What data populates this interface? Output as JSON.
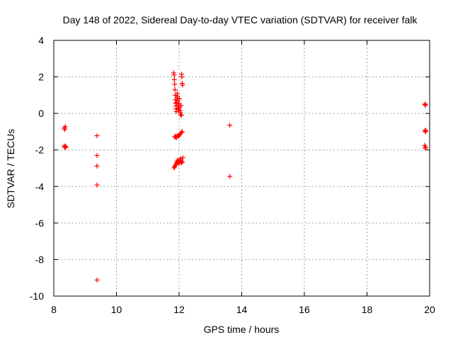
{
  "chart_data": {
    "type": "scatter",
    "title": "Day 148 of 2022, Sidereal Day-to-day VTEC variation (SDTVAR) for receiver falk",
    "xlabel": "GPS time / hours",
    "ylabel": "SDTVAR / TECUs",
    "xlim": [
      8,
      20
    ],
    "ylim": [
      -10,
      4
    ],
    "x_ticks": [
      8,
      10,
      12,
      14,
      16,
      18,
      20
    ],
    "y_ticks": [
      4,
      2,
      0,
      -2,
      -4,
      -6,
      -8,
      -10
    ],
    "x_tick_labels": [
      "8",
      "10",
      "12",
      "14",
      "16",
      "18",
      "20"
    ],
    "y_tick_labels": [
      "4",
      "2",
      "0",
      "-2",
      "-4",
      "-6",
      "-8",
      "-10"
    ],
    "grid": true,
    "marker": "plus",
    "color": "#ff0000",
    "series": [
      {
        "name": "SDTVAR",
        "points": [
          [
            8.33,
            -0.8
          ],
          [
            8.35,
            -0.88
          ],
          [
            8.37,
            -0.72
          ],
          [
            8.33,
            -1.78
          ],
          [
            8.35,
            -1.86
          ],
          [
            8.37,
            -1.8
          ],
          [
            8.39,
            -1.84
          ],
          [
            9.38,
            -1.22
          ],
          [
            9.38,
            -2.3
          ],
          [
            9.38,
            -2.88
          ],
          [
            9.38,
            -3.92
          ],
          [
            9.38,
            -9.12
          ],
          [
            11.83,
            2.22
          ],
          [
            11.84,
            2.1
          ],
          [
            11.85,
            1.85
          ],
          [
            11.86,
            1.6
          ],
          [
            11.87,
            1.3
          ],
          [
            11.88,
            1.0
          ],
          [
            11.88,
            0.75
          ],
          [
            11.89,
            0.55
          ],
          [
            11.9,
            0.4
          ],
          [
            11.9,
            0.25
          ],
          [
            11.91,
            0.1
          ],
          [
            11.92,
            0.6
          ],
          [
            11.93,
            0.85
          ],
          [
            11.94,
            1.1
          ],
          [
            11.95,
            0.95
          ],
          [
            11.96,
            0.7
          ],
          [
            11.97,
            0.45
          ],
          [
            11.98,
            0.3
          ],
          [
            11.99,
            0.2
          ],
          [
            12.0,
            0.55
          ],
          [
            12.01,
            0.8
          ],
          [
            12.02,
            0.35
          ],
          [
            12.03,
            0.15
          ],
          [
            12.04,
            0.05
          ],
          [
            12.05,
            -0.05
          ],
          [
            12.06,
            0.45
          ],
          [
            12.07,
            -0.12
          ],
          [
            12.08,
            2.15
          ],
          [
            12.09,
            2.0
          ],
          [
            12.1,
            1.65
          ],
          [
            12.11,
            1.55
          ],
          [
            11.86,
            -1.28
          ],
          [
            11.88,
            -1.3
          ],
          [
            11.9,
            -1.24
          ],
          [
            11.92,
            -1.32
          ],
          [
            11.95,
            -1.22
          ],
          [
            11.98,
            -1.26
          ],
          [
            12.01,
            -1.18
          ],
          [
            12.04,
            -1.12
          ],
          [
            12.07,
            -1.04
          ],
          [
            12.1,
            -1.0
          ],
          [
            11.84,
            -2.98
          ],
          [
            11.86,
            -2.92
          ],
          [
            11.88,
            -2.85
          ],
          [
            11.9,
            -2.78
          ],
          [
            11.92,
            -2.7
          ],
          [
            11.94,
            -2.62
          ],
          [
            11.96,
            -2.55
          ],
          [
            11.98,
            -2.68
          ],
          [
            12.0,
            -2.75
          ],
          [
            12.02,
            -2.6
          ],
          [
            12.04,
            -2.48
          ],
          [
            12.06,
            -2.58
          ],
          [
            12.08,
            -2.7
          ],
          [
            12.1,
            -2.65
          ],
          [
            12.12,
            -2.42
          ],
          [
            13.62,
            -0.65
          ],
          [
            13.62,
            -3.45
          ],
          [
            19.85,
            0.48
          ],
          [
            19.86,
            0.52
          ],
          [
            19.87,
            0.45
          ],
          [
            19.85,
            -0.92
          ],
          [
            19.86,
            -1.0
          ],
          [
            19.88,
            -0.96
          ],
          [
            19.84,
            -1.75
          ],
          [
            19.86,
            -1.9
          ],
          [
            19.87,
            -1.84
          ]
        ]
      }
    ]
  }
}
